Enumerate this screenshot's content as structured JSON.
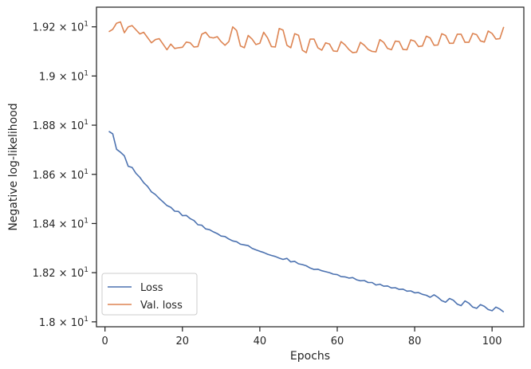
{
  "chart_data": {
    "type": "line",
    "xlabel": "Epochs",
    "ylabel": "Negative log-likelihood",
    "xlim": [
      -2.2,
      108.2
    ],
    "ylim": [
      17.98,
      19.28
    ],
    "grid": false,
    "legend_position": "lower-left",
    "x_ticks": [
      0,
      20,
      40,
      60,
      80,
      100
    ],
    "x_tick_labels": [
      "0",
      "20",
      "40",
      "60",
      "80",
      "100"
    ],
    "y_ticks": [
      18.0,
      18.2,
      18.4,
      18.6,
      18.8,
      19.0,
      19.2
    ],
    "y_tick_labels": [
      {
        "mantissa": "1.8",
        "exponent": "1"
      },
      {
        "mantissa": "1.82",
        "exponent": "1"
      },
      {
        "mantissa": "1.84",
        "exponent": "1"
      },
      {
        "mantissa": "1.86",
        "exponent": "1"
      },
      {
        "mantissa": "1.88",
        "exponent": "1"
      },
      {
        "mantissa": "1.9",
        "exponent": "1"
      },
      {
        "mantissa": "1.92",
        "exponent": "1"
      }
    ],
    "series": [
      {
        "name": "Loss",
        "color": "#4c72b0",
        "x": [
          1,
          2,
          3,
          4,
          5,
          6,
          7,
          8,
          9,
          10,
          11,
          12,
          13,
          14,
          15,
          16,
          17,
          18,
          19,
          20,
          21,
          22,
          23,
          24,
          25,
          26,
          27,
          28,
          29,
          30,
          31,
          32,
          33,
          34,
          35,
          36,
          37,
          38,
          39,
          40,
          41,
          42,
          43,
          44,
          45,
          46,
          47,
          48,
          49,
          50,
          51,
          52,
          53,
          54,
          55,
          56,
          57,
          58,
          59,
          60,
          61,
          62,
          63,
          64,
          65,
          66,
          67,
          68,
          69,
          70,
          71,
          72,
          73,
          74,
          75,
          76,
          77,
          78,
          79,
          80,
          81,
          82,
          83,
          84,
          85,
          86,
          87,
          88,
          89,
          90,
          91,
          92,
          93,
          94,
          95,
          96,
          97,
          98,
          99,
          100,
          101,
          102,
          103
        ],
        "y": [
          18.775,
          18.765,
          18.702,
          18.69,
          18.675,
          18.633,
          18.628,
          18.604,
          18.588,
          18.566,
          18.551,
          18.529,
          18.518,
          18.502,
          18.488,
          18.473,
          18.466,
          18.45,
          18.449,
          18.432,
          18.433,
          18.42,
          18.412,
          18.395,
          18.393,
          18.378,
          18.375,
          18.366,
          18.359,
          18.349,
          18.347,
          18.337,
          18.329,
          18.326,
          18.316,
          18.313,
          18.31,
          18.299,
          18.293,
          18.287,
          18.282,
          18.275,
          18.27,
          18.266,
          18.259,
          18.254,
          18.258,
          18.244,
          18.246,
          18.236,
          18.233,
          18.228,
          18.219,
          18.213,
          18.214,
          18.208,
          18.204,
          18.2,
          18.194,
          18.192,
          18.184,
          18.183,
          18.178,
          18.18,
          18.171,
          18.167,
          18.168,
          18.16,
          18.16,
          18.15,
          18.153,
          18.145,
          18.146,
          18.138,
          18.139,
          18.132,
          18.133,
          18.125,
          18.126,
          18.118,
          18.119,
          18.112,
          18.108,
          18.1,
          18.11,
          18.1,
          18.086,
          18.08,
          18.095,
          18.088,
          18.072,
          18.066,
          18.085,
          18.076,
          18.06,
          18.055,
          18.07,
          18.063,
          18.05,
          18.045,
          18.06,
          18.052,
          18.04
        ]
      },
      {
        "name": "Val. loss",
        "color": "#dd8452",
        "x": [
          1,
          2,
          3,
          4,
          5,
          6,
          7,
          8,
          9,
          10,
          11,
          12,
          13,
          14,
          15,
          16,
          17,
          18,
          19,
          20,
          21,
          22,
          23,
          24,
          25,
          26,
          27,
          28,
          29,
          30,
          31,
          32,
          33,
          34,
          35,
          36,
          37,
          38,
          39,
          40,
          41,
          42,
          43,
          44,
          45,
          46,
          47,
          48,
          49,
          50,
          51,
          52,
          53,
          54,
          55,
          56,
          57,
          58,
          59,
          60,
          61,
          62,
          63,
          64,
          65,
          66,
          67,
          68,
          69,
          70,
          71,
          72,
          73,
          74,
          75,
          76,
          77,
          78,
          79,
          80,
          81,
          82,
          83,
          84,
          85,
          86,
          87,
          88,
          89,
          90,
          91,
          92,
          93,
          94,
          95,
          96,
          97,
          98,
          99,
          100,
          101,
          102,
          103
        ],
        "y": [
          19.18,
          19.19,
          19.215,
          19.22,
          19.176,
          19.2,
          19.205,
          19.188,
          19.171,
          19.178,
          19.156,
          19.135,
          19.148,
          19.152,
          19.13,
          19.107,
          19.13,
          19.112,
          19.115,
          19.117,
          19.138,
          19.135,
          19.118,
          19.12,
          19.17,
          19.178,
          19.158,
          19.155,
          19.16,
          19.14,
          19.125,
          19.14,
          19.2,
          19.185,
          19.122,
          19.115,
          19.165,
          19.15,
          19.128,
          19.133,
          19.178,
          19.155,
          19.12,
          19.118,
          19.193,
          19.187,
          19.125,
          19.115,
          19.172,
          19.166,
          19.105,
          19.095,
          19.15,
          19.15,
          19.115,
          19.105,
          19.135,
          19.13,
          19.102,
          19.1,
          19.14,
          19.127,
          19.108,
          19.095,
          19.097,
          19.137,
          19.125,
          19.108,
          19.1,
          19.098,
          19.148,
          19.137,
          19.112,
          19.107,
          19.142,
          19.14,
          19.108,
          19.107,
          19.147,
          19.142,
          19.12,
          19.122,
          19.162,
          19.155,
          19.125,
          19.126,
          19.172,
          19.165,
          19.133,
          19.133,
          19.17,
          19.17,
          19.137,
          19.137,
          19.173,
          19.168,
          19.143,
          19.138,
          19.183,
          19.173,
          19.15,
          19.152,
          19.2
        ]
      }
    ]
  }
}
